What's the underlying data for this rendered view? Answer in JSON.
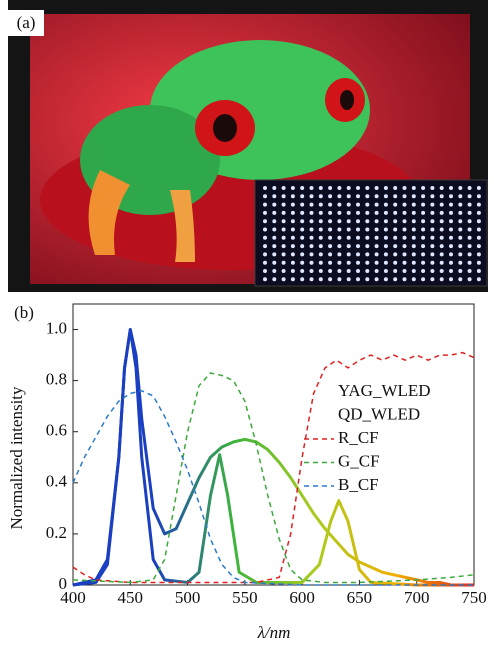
{
  "photo": {
    "label": "(a)"
  },
  "chart_data": {
    "type": "line",
    "panel_label": "(b)",
    "x_label": "λ/nm",
    "y_label": "Normalized intensity",
    "xlim": [
      400,
      750
    ],
    "xticks": [
      400,
      450,
      500,
      550,
      600,
      650,
      700,
      750
    ],
    "ylim": [
      0,
      1.1
    ],
    "yticks": [
      0,
      0.2,
      0.4,
      0.6,
      0.8,
      {
        "value": 1,
        "label": "1.0"
      }
    ],
    "legend": "upper right",
    "series": [
      {
        "name": "YAG_WLED",
        "color": [
          "#1a3fc0",
          "#1a3fc0",
          "#3cb43c",
          "#a8cc20",
          "#f0b000",
          "#e02818"
        ],
        "dash": false,
        "x": [
          400,
          420,
          430,
          440,
          445,
          450,
          455,
          460,
          470,
          480,
          490,
          500,
          510,
          520,
          530,
          540,
          550,
          560,
          570,
          580,
          590,
          600,
          610,
          620,
          630,
          640,
          650,
          660,
          670,
          680,
          690,
          700,
          710,
          720,
          730,
          750
        ],
        "values": [
          0,
          0.02,
          0.1,
          0.5,
          0.85,
          1.0,
          0.9,
          0.65,
          0.3,
          0.2,
          0.22,
          0.32,
          0.42,
          0.5,
          0.54,
          0.56,
          0.57,
          0.56,
          0.53,
          0.48,
          0.42,
          0.35,
          0.28,
          0.22,
          0.17,
          0.12,
          0.09,
          0.07,
          0.05,
          0.04,
          0.03,
          0.02,
          0.01,
          0.01,
          0,
          0
        ]
      },
      {
        "name": "QD_WLED",
        "color": [
          "#1a3fc0",
          "#1a3fc0",
          "#3cb43c",
          "#a8cc20",
          "#f0b000",
          "#e02818"
        ],
        "dash": false,
        "x": [
          400,
          420,
          430,
          440,
          445,
          450,
          455,
          460,
          470,
          480,
          500,
          510,
          520,
          528,
          535,
          545,
          560,
          600,
          615,
          625,
          632,
          640,
          650,
          660,
          700,
          750
        ],
        "values": [
          0,
          0.01,
          0.08,
          0.5,
          0.85,
          1.0,
          0.85,
          0.5,
          0.1,
          0.02,
          0.01,
          0.05,
          0.35,
          0.51,
          0.35,
          0.05,
          0.01,
          0.01,
          0.08,
          0.25,
          0.33,
          0.25,
          0.06,
          0.01,
          0,
          0
        ]
      },
      {
        "name": "R_CF",
        "color": "#e02020",
        "dash": true,
        "x": [
          400,
          410,
          420,
          450,
          500,
          560,
          580,
          590,
          600,
          610,
          620,
          630,
          640,
          650,
          660,
          670,
          680,
          690,
          700,
          710,
          720,
          730,
          740,
          750
        ],
        "values": [
          0.07,
          0.04,
          0.02,
          0.01,
          0.01,
          0.01,
          0.03,
          0.2,
          0.5,
          0.75,
          0.85,
          0.88,
          0.85,
          0.88,
          0.9,
          0.88,
          0.9,
          0.88,
          0.9,
          0.88,
          0.9,
          0.9,
          0.91,
          0.89
        ]
      },
      {
        "name": "G_CF",
        "color": "#3aaa3a",
        "dash": true,
        "x": [
          400,
          450,
          470,
          480,
          490,
          500,
          510,
          520,
          530,
          540,
          550,
          560,
          570,
          580,
          590,
          600,
          620,
          650,
          700,
          730,
          750
        ],
        "values": [
          0.02,
          0.01,
          0.02,
          0.1,
          0.35,
          0.6,
          0.78,
          0.83,
          0.82,
          0.8,
          0.72,
          0.55,
          0.35,
          0.18,
          0.06,
          0.02,
          0.01,
          0.01,
          0.02,
          0.03,
          0.04
        ]
      },
      {
        "name": "B_CF",
        "color": "#2a7ac8",
        "dash": true,
        "x": [
          400,
          410,
          420,
          430,
          440,
          450,
          460,
          470,
          480,
          490,
          500,
          510,
          520,
          530,
          540,
          550,
          600,
          750
        ],
        "values": [
          0.4,
          0.5,
          0.58,
          0.66,
          0.72,
          0.75,
          0.76,
          0.74,
          0.66,
          0.56,
          0.45,
          0.32,
          0.18,
          0.08,
          0.03,
          0.01,
          0,
          0
        ]
      }
    ]
  }
}
